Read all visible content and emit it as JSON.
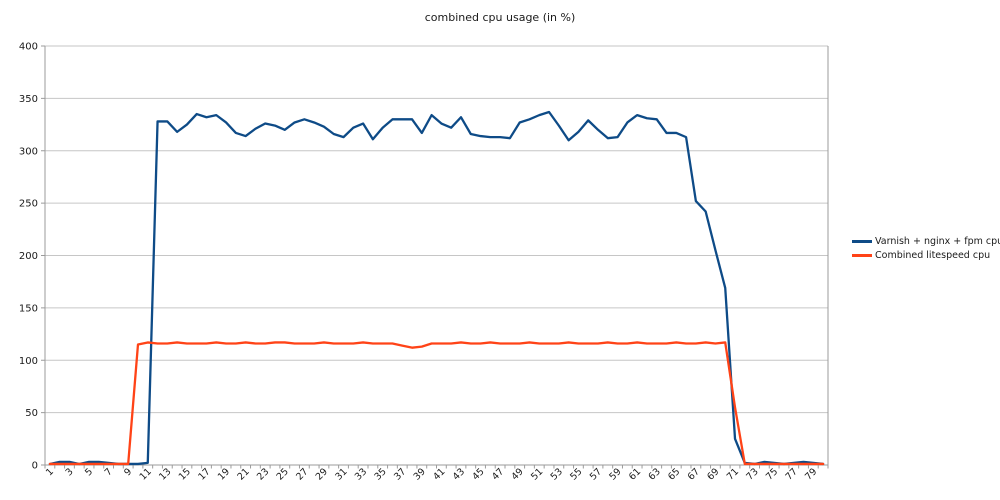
{
  "title": "combined cpu usage (in %)",
  "chart_data": {
    "type": "line",
    "title": "combined cpu usage (in %)",
    "xlabel": "",
    "ylabel": "",
    "ylim": [
      0,
      400
    ],
    "y_tick_step": 50,
    "y_ticks": [
      0,
      50,
      100,
      150,
      200,
      250,
      300,
      350,
      400
    ],
    "x_count": 80,
    "x_labels": [
      "1",
      "3",
      "5",
      "7",
      "9",
      "11",
      "13",
      "15",
      "17",
      "19",
      "21",
      "23",
      "25",
      "27",
      "29",
      "31",
      "33",
      "35",
      "37",
      "39",
      "41",
      "43",
      "45",
      "47",
      "49",
      "51",
      "53",
      "55",
      "57",
      "59",
      "61",
      "63",
      "65",
      "67",
      "69",
      "71",
      "73",
      "75",
      "77",
      "79"
    ],
    "grid": "horizontal",
    "legend_position": "right",
    "series": [
      {
        "name": "Varnish + nginx + fpm cpu",
        "color": "#0e4b87",
        "values": [
          1,
          3,
          3,
          1,
          3,
          3,
          2,
          1,
          1,
          1,
          2,
          328,
          328,
          318,
          325,
          335,
          332,
          334,
          327,
          317,
          314,
          321,
          326,
          324,
          320,
          327,
          330,
          327,
          323,
          316,
          313,
          322,
          326,
          311,
          322,
          330,
          330,
          330,
          317,
          334,
          326,
          322,
          332,
          316,
          314,
          313,
          313,
          312,
          327,
          330,
          334,
          337,
          324,
          310,
          318,
          329,
          320,
          312,
          313,
          327,
          334,
          331,
          330,
          317,
          317,
          313,
          252,
          242,
          205,
          169,
          25,
          2,
          1,
          3,
          2,
          1,
          2,
          3,
          2,
          1
        ]
      },
      {
        "name": "Combined litespeed cpu",
        "color": "#ff4317",
        "values": [
          1,
          1,
          1,
          1,
          1,
          1,
          1,
          1,
          1,
          115,
          117,
          116,
          116,
          117,
          116,
          116,
          116,
          117,
          116,
          116,
          117,
          116,
          116,
          117,
          117,
          116,
          116,
          116,
          117,
          116,
          116,
          116,
          117,
          116,
          116,
          116,
          114,
          112,
          113,
          116,
          116,
          116,
          117,
          116,
          116,
          117,
          116,
          116,
          116,
          117,
          116,
          116,
          116,
          117,
          116,
          116,
          116,
          117,
          116,
          116,
          117,
          116,
          116,
          116,
          117,
          116,
          116,
          117,
          116,
          117,
          55,
          1,
          1,
          1,
          1,
          1,
          1,
          1,
          1,
          1
        ]
      }
    ],
    "colors": {
      "gridline": "#c6c6c6",
      "axis": "#9b9b9b",
      "text": "#1a1a1a",
      "background": "#ffffff"
    }
  }
}
